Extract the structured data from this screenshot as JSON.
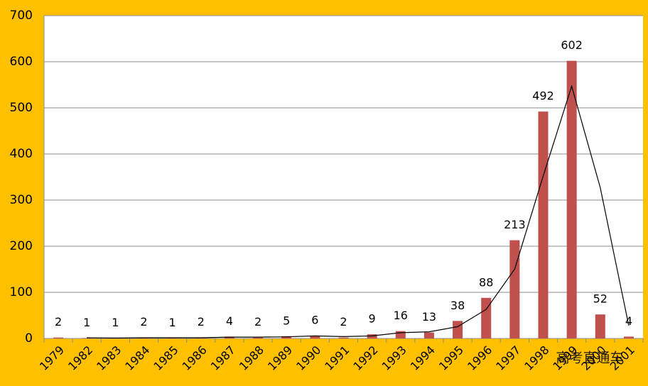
{
  "chart_data": {
    "type": "bar",
    "categories": [
      "1979",
      "1982",
      "1983",
      "1984",
      "1985",
      "1986",
      "1987",
      "1988",
      "1989",
      "1990",
      "1991",
      "1992",
      "1993",
      "1994",
      "1995",
      "1996",
      "1997",
      "1998",
      "1999",
      "2000",
      "2001"
    ],
    "values": [
      2,
      1,
      1,
      2,
      1,
      2,
      4,
      2,
      5,
      6,
      2,
      9,
      16,
      13,
      38,
      88,
      213,
      492,
      602,
      52,
      4
    ],
    "color": "#c0504d",
    "trend_values": [
      null,
      1.5,
      1,
      1.5,
      1.5,
      1.5,
      3,
      3,
      3.5,
      5.5,
      4,
      5.5,
      12.5,
      14.5,
      25.5,
      63,
      150.5,
      352.5,
      547,
      327,
      28
    ],
    "trend_color": "#000000",
    "ylim": [
      0,
      700
    ],
    "yticks": [
      0,
      100,
      200,
      300,
      400,
      500,
      600,
      700
    ],
    "grid": true,
    "watermark": "高考直通车"
  }
}
